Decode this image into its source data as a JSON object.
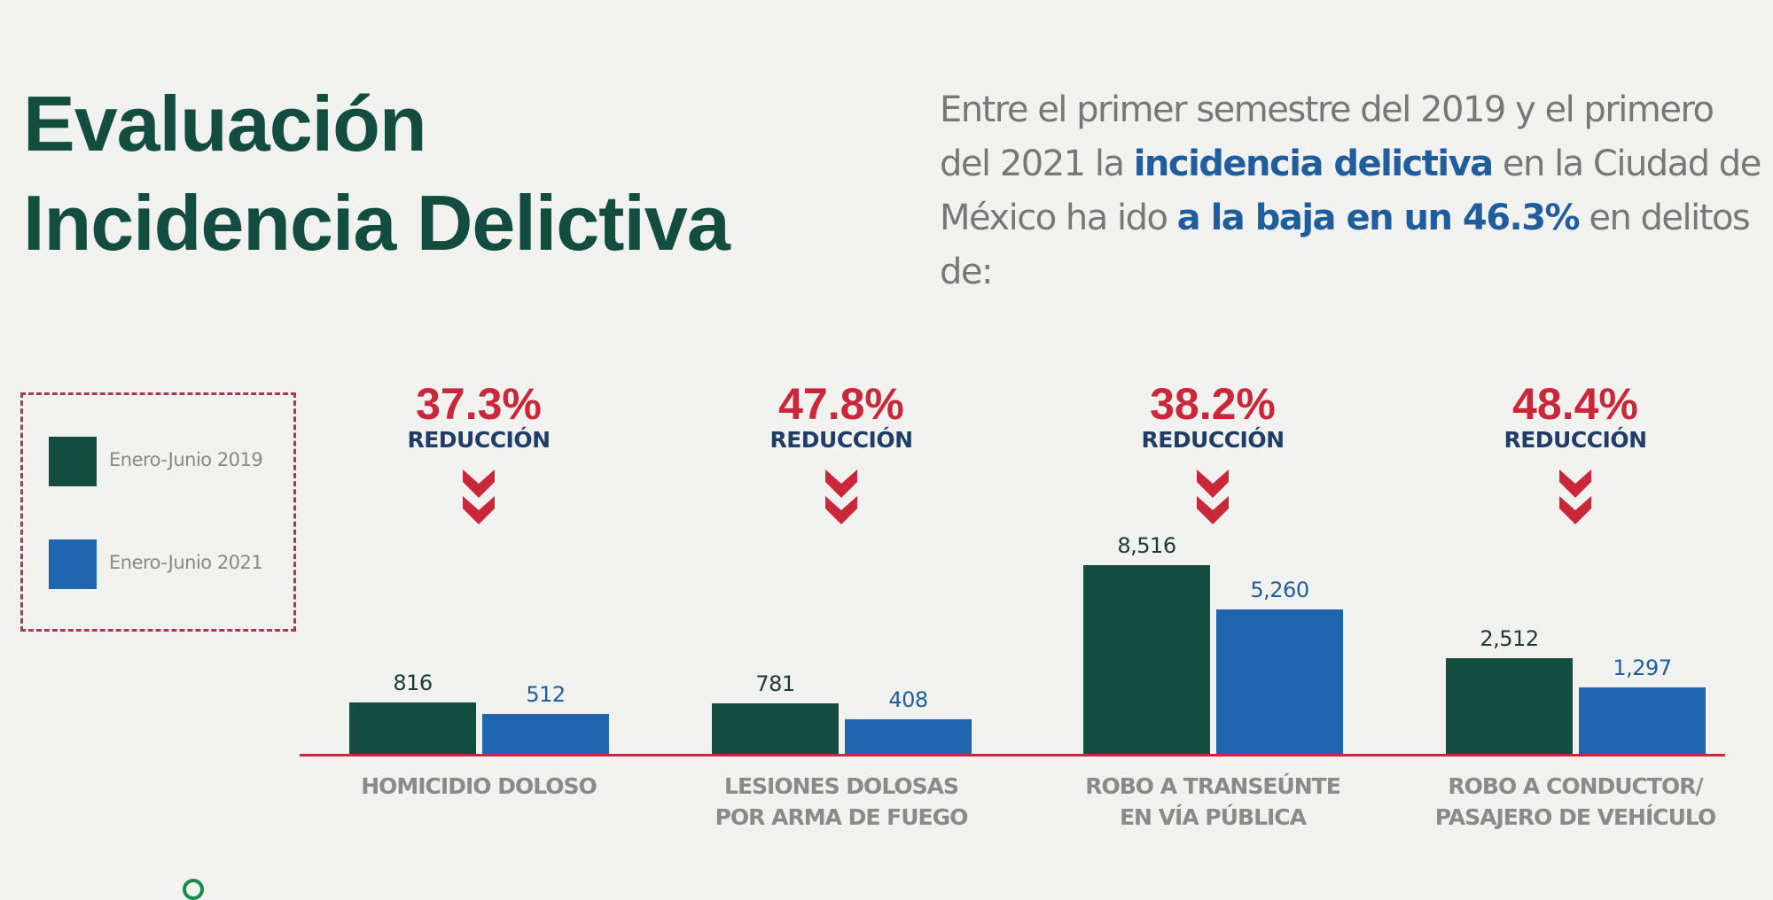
{
  "header": {
    "title_line1": "Evaluación",
    "title_line2": "Incidencia Delictiva",
    "intro": {
      "part1": "Entre el primer semestre del 2019 y el primero del 2021 la ",
      "highlight1": "incidencia delictiva",
      "part2": " en la Ciudad de México ha ido ",
      "highlight2": "a la baja en un 46.3%",
      "part3": " en delitos de:"
    }
  },
  "colors": {
    "green": "#124d3f",
    "blue": "#1f66ae",
    "red": "#c8283a",
    "navy": "#1f3d66"
  },
  "chart_data": {
    "type": "bar",
    "categories": [
      [
        "HOMICIDIO DOLOSO"
      ],
      [
        "LESIONES DOLOSAS",
        "POR ARMA DE FUEGO"
      ],
      [
        "ROBO A TRANSEÚNTE",
        "EN VÍA PÚBLICA"
      ],
      [
        "ROBO A CONDUCTOR/",
        "PASAJERO DE VEHÍCULO"
      ]
    ],
    "series": [
      {
        "name": "Enero-Junio 2019",
        "values": [
          816,
          781,
          8516,
          2512
        ],
        "labels": [
          "816",
          "781",
          "8,516",
          "2,512"
        ],
        "color": "#124d3f"
      },
      {
        "name": "Enero-Junio 2021",
        "values": [
          512,
          408,
          5260,
          1297
        ],
        "labels": [
          "512",
          "408",
          "5,260",
          "1,297"
        ],
        "color": "#1f66ae"
      }
    ],
    "reductions": [
      "37.3%",
      "47.8%",
      "38.2%",
      "48.4%"
    ],
    "reduction_label": "REDUCCIÓN",
    "legend_position": "left",
    "grid": false
  }
}
